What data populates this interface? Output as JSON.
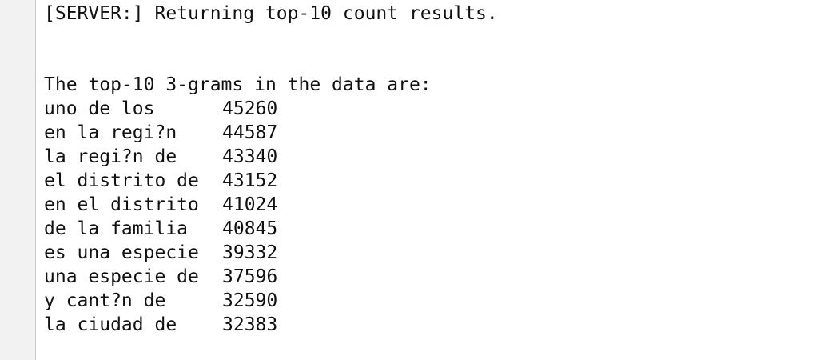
{
  "server_message": "[SERVER:] Returning top-10 count results.",
  "heading": "The top-10 3-grams in the data are:",
  "rows": [
    [
      "uno de los",
      45260
    ],
    [
      "en la regi?n",
      44587
    ],
    [
      "la regi?n de",
      43340
    ],
    [
      "el distrito de",
      43152
    ],
    [
      "en el distrito",
      41024
    ],
    [
      "de la familia",
      40845
    ],
    [
      "es una especie",
      39332
    ],
    [
      "una especie de",
      37596
    ],
    [
      "y cant?n de",
      32590
    ],
    [
      "la ciudad de",
      32383
    ]
  ]
}
